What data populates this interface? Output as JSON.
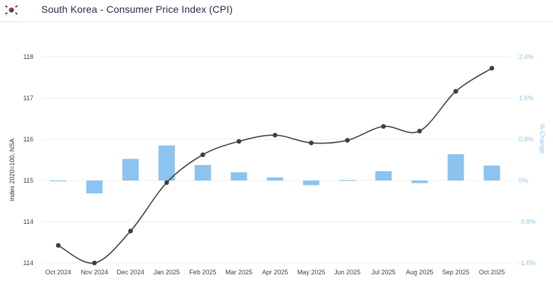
{
  "header": {
    "title": "South Korea - Consumer Price Index (CPI)",
    "flag_icon": "south-korea-flag-icon"
  },
  "colors": {
    "line": "#3d3f47",
    "bar": "#8cc3ef",
    "grid": "#eceef2",
    "right_axis_text": "#8cc3ef"
  },
  "chart_data": {
    "type": "line+bar",
    "title": "South Korea - Consumer Price Index (CPI)",
    "categories": [
      "Oct 2024",
      "Nov 2024",
      "Dec 2024",
      "Jan 2025",
      "Feb 2025",
      "Mar 2025",
      "Apr 2025",
      "May 2025",
      "Jun 2025",
      "Jul 2025",
      "Aug 2025",
      "Sep 2025",
      "Oct 2025"
    ],
    "ylabel": "Index 2020=100, NSA",
    "y2label": "% Change",
    "y_ticks": [
      "118",
      "117",
      "116",
      "115",
      "114",
      "114"
    ],
    "y2_ticks": [
      "2.4%",
      "1.6%",
      "0.8%",
      "0%",
      "-0.8%",
      "-1.6%"
    ],
    "ylim": [
      114,
      118
    ],
    "y2lim": [
      -1.6,
      2.4
    ],
    "series": [
      {
        "name": "Index 2020=100, NSA",
        "type": "line",
        "axis": "left",
        "values": [
          114.34,
          114.0,
          114.62,
          115.56,
          116.1,
          116.36,
          116.48,
          116.33,
          116.38,
          116.65,
          116.56,
          117.33,
          117.78
        ]
      },
      {
        "name": "% Change",
        "type": "bar",
        "axis": "right",
        "values": [
          0.0,
          -0.25,
          0.42,
          0.68,
          0.3,
          0.16,
          0.06,
          -0.09,
          0.01,
          0.18,
          -0.05,
          0.51,
          0.29
        ]
      }
    ]
  }
}
